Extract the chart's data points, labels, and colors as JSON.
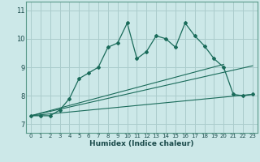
{
  "xlabel": "Humidex (Indice chaleur)",
  "background_color": "#cce8e8",
  "grid_color": "#aacccc",
  "line_color": "#1a6b5a",
  "xlim": [
    -0.5,
    23.5
  ],
  "ylim": [
    6.7,
    11.3
  ],
  "yticks": [
    7,
    8,
    9,
    10,
    11
  ],
  "xticks": [
    0,
    1,
    2,
    3,
    4,
    5,
    6,
    7,
    8,
    9,
    10,
    11,
    12,
    13,
    14,
    15,
    16,
    17,
    18,
    19,
    20,
    21,
    22,
    23
  ],
  "main_x": [
    0,
    1,
    2,
    3,
    4,
    5,
    6,
    7,
    8,
    9,
    10,
    11,
    12,
    13,
    14,
    15,
    16,
    17,
    18,
    19,
    20,
    21,
    22,
    23
  ],
  "main_y": [
    7.3,
    7.3,
    7.3,
    7.5,
    7.9,
    8.6,
    8.8,
    9.0,
    9.7,
    9.85,
    10.55,
    9.3,
    9.55,
    10.1,
    10.0,
    9.7,
    10.55,
    10.1,
    9.75,
    9.3,
    9.0,
    8.05,
    8.0,
    8.05
  ],
  "line1_x": [
    0,
    23
  ],
  "line1_y": [
    7.3,
    9.05
  ],
  "line2_x": [
    0,
    20
  ],
  "line2_y": [
    7.3,
    9.1
  ],
  "line3_x": [
    0,
    23
  ],
  "line3_y": [
    7.3,
    8.05
  ]
}
